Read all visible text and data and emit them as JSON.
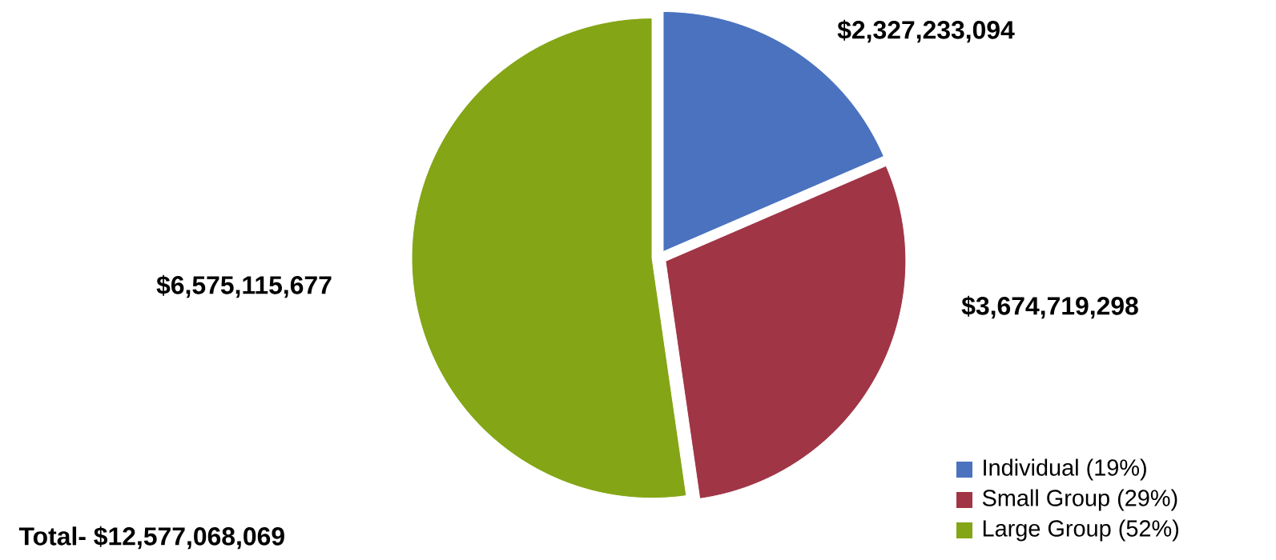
{
  "chart_data": {
    "type": "pie",
    "categories": [
      "Individual (19%)",
      "Small Group (29%)",
      "Large Group (52%)"
    ],
    "values": [
      2327233094,
      3674719298,
      6575115677
    ],
    "colors": [
      "#4a72bf",
      "#a03546",
      "#84a515"
    ],
    "value_labels": [
      "$2,327,233,094",
      "$3,674,719,298",
      "$6,575,115,677"
    ],
    "annotations": [
      "Total- $12,577,068,069"
    ],
    "legend": "bottom right"
  }
}
